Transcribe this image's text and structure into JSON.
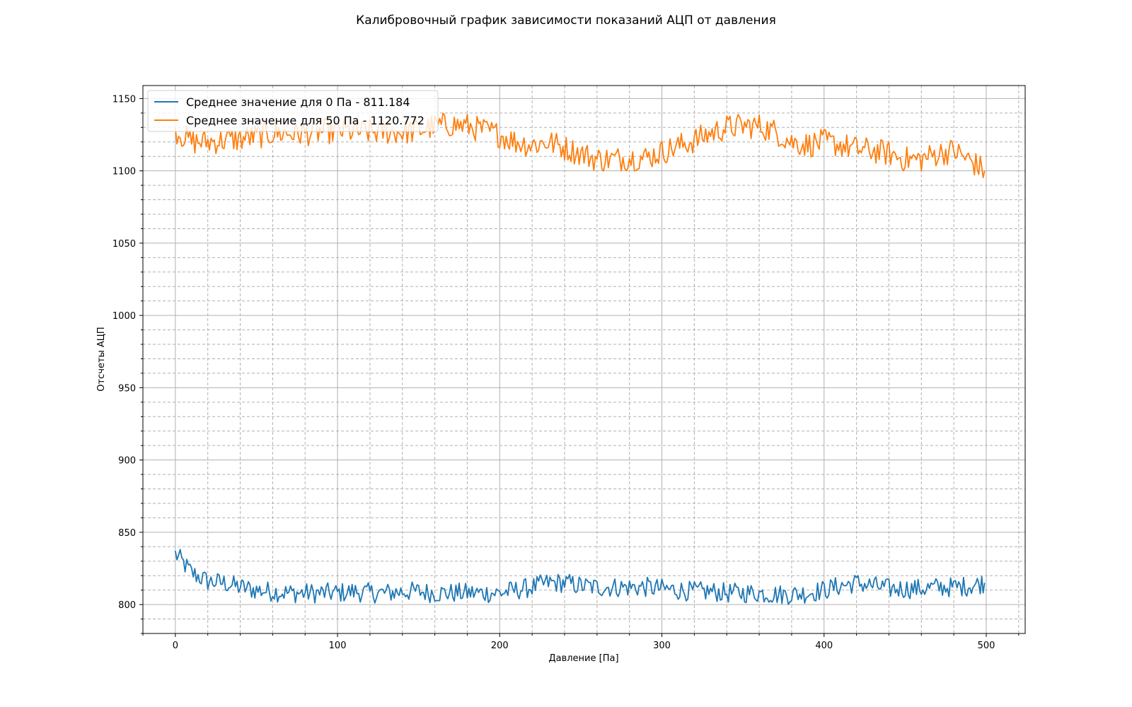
{
  "chart_data": {
    "type": "line",
    "title": "Калибровочный график зависимости показаний АЦП от давления",
    "xlabel": "Давление [Па]",
    "ylabel": "Отсчеты АЦП",
    "xlim": [
      -20,
      524
    ],
    "ylim": [
      780,
      1159
    ],
    "x_ticks": [
      0,
      100,
      200,
      300,
      400,
      500
    ],
    "y_ticks": [
      800,
      850,
      900,
      950,
      1000,
      1050,
      1100,
      1150
    ],
    "x_tick_labels": [
      "0",
      "100",
      "200",
      "300",
      "400",
      "500"
    ],
    "y_tick_labels": [
      "800",
      "850",
      "900",
      "950",
      "1000",
      "1050",
      "1100",
      "1150"
    ],
    "grid": true,
    "minor_grid": true,
    "legend_position": "upper-left",
    "series": [
      {
        "name": "Среднее значение для 0 Па - 811.184",
        "color": "#1f77b4",
        "x": [
          0,
          10,
          20,
          30,
          40,
          50,
          60,
          70,
          80,
          90,
          100,
          110,
          120,
          130,
          140,
          150,
          160,
          170,
          180,
          190,
          200,
          210,
          220,
          230,
          240,
          250,
          260,
          270,
          280,
          290,
          300,
          310,
          320,
          330,
          340,
          350,
          360,
          370,
          380,
          390,
          400,
          410,
          420,
          430,
          440,
          450,
          460,
          470,
          480,
          490,
          499
        ],
        "values": [
          835,
          822,
          816,
          815,
          812,
          810,
          809,
          808,
          808,
          808,
          808,
          809,
          808,
          808,
          809,
          809,
          808,
          808,
          808,
          808,
          808,
          810,
          812,
          815,
          815,
          813,
          812,
          812,
          812,
          812,
          811,
          810,
          809,
          809,
          808,
          808,
          808,
          807,
          807,
          808,
          810,
          813,
          815,
          813,
          811,
          811,
          811,
          812,
          812,
          813,
          815
        ]
      },
      {
        "name": "Среднее значение для 50 Па - 1120.772",
        "color": "#ff7f0e",
        "x": [
          0,
          10,
          20,
          30,
          40,
          50,
          60,
          70,
          80,
          90,
          100,
          110,
          120,
          130,
          140,
          150,
          160,
          170,
          180,
          190,
          200,
          210,
          220,
          230,
          240,
          250,
          260,
          270,
          280,
          290,
          300,
          310,
          320,
          330,
          340,
          350,
          360,
          370,
          380,
          390,
          400,
          410,
          420,
          430,
          440,
          450,
          460,
          470,
          480,
          490,
          499
        ],
        "values": [
          1128,
          1120,
          1120,
          1121,
          1122,
          1124,
          1126,
          1126,
          1126,
          1127,
          1128,
          1127,
          1127,
          1127,
          1127,
          1128,
          1131,
          1132,
          1131,
          1128,
          1125,
          1120,
          1118,
          1120,
          1116,
          1112,
          1108,
          1108,
          1109,
          1109,
          1113,
          1117,
          1121,
          1126,
          1130,
          1131,
          1131,
          1127,
          1120,
          1118,
          1120,
          1118,
          1115,
          1114,
          1112,
          1108,
          1108,
          1112,
          1114,
          1107,
          1100
        ]
      }
    ]
  }
}
